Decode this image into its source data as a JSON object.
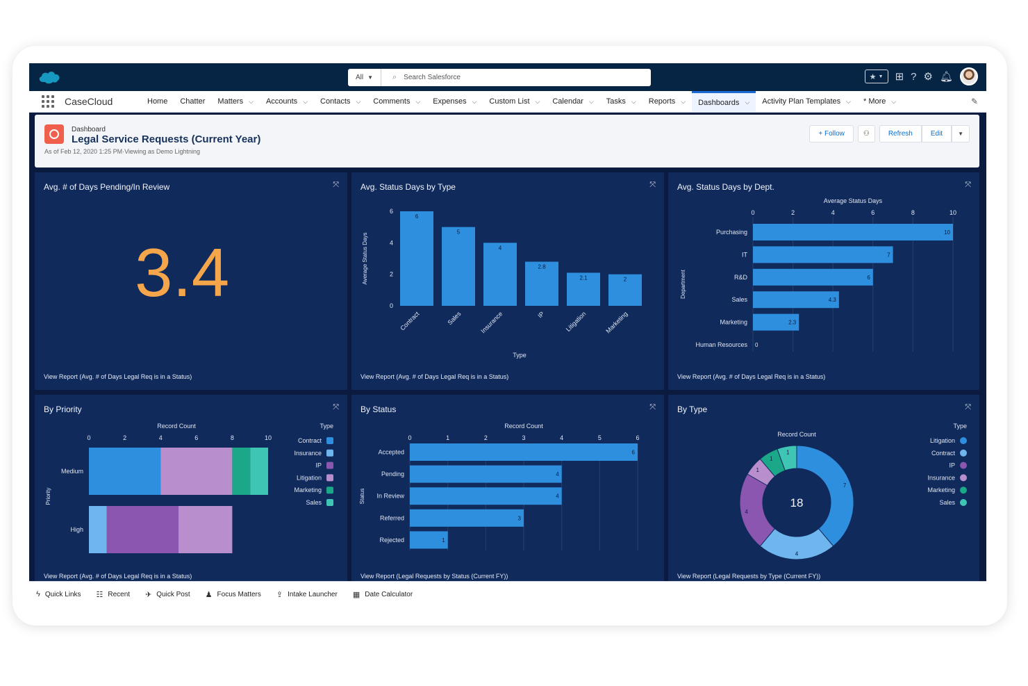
{
  "top": {
    "search_scope": "All",
    "search_placeholder": "Search Salesforce"
  },
  "nav": {
    "app_name": "CaseCloud",
    "items": [
      {
        "label": "Home",
        "dropdown": false
      },
      {
        "label": "Chatter",
        "dropdown": false
      },
      {
        "label": "Matters",
        "dropdown": true
      },
      {
        "label": "Accounts",
        "dropdown": true
      },
      {
        "label": "Contacts",
        "dropdown": true
      },
      {
        "label": "Comments",
        "dropdown": true
      },
      {
        "label": "Expenses",
        "dropdown": true
      },
      {
        "label": "Custom List",
        "dropdown": true
      },
      {
        "label": "Calendar",
        "dropdown": true
      },
      {
        "label": "Tasks",
        "dropdown": true
      },
      {
        "label": "Reports",
        "dropdown": true
      },
      {
        "label": "Dashboards",
        "dropdown": true,
        "active": true
      },
      {
        "label": "Activity Plan Templates",
        "dropdown": true
      },
      {
        "label": "* More",
        "dropdown": true
      }
    ]
  },
  "header": {
    "type_label": "Dashboard",
    "title": "Legal Service Requests (Current Year)",
    "subtitle": "As of Feb 12, 2020 1:25 PM·Viewing as Demo Lightning",
    "follow_label": "+ Follow",
    "refresh_label": "Refresh",
    "edit_label": "Edit"
  },
  "panels": {
    "days_pending": {
      "title": "Avg. # of Days Pending/In Review",
      "value": "3.4",
      "footer": "View Report (Avg. # of Days Legal Req is in a Status)"
    },
    "status_by_type": {
      "title": "Avg. Status Days by Type",
      "footer": "View Report (Avg. # of Days Legal Req is in a Status)"
    },
    "status_by_dept": {
      "title": "Avg. Status Days by Dept.",
      "footer": "View Report (Avg. # of Days Legal Req is in a Status)"
    },
    "by_priority": {
      "title": "By Priority",
      "footer": "View Report (Avg. # of Days Legal Req is in a Status)"
    },
    "by_status": {
      "title": "By Status",
      "footer": "View Report (Legal Requests by Status (Current FY))"
    },
    "by_type": {
      "title": "By Type",
      "footer": "View Report (Legal Requests by Type (Current FY))"
    }
  },
  "chart_data": [
    {
      "id": "status_by_type",
      "type": "bar",
      "categories": [
        "Contract",
        "Sales",
        "Insurance",
        "IP",
        "Litigation",
        "Marketing"
      ],
      "values": [
        6,
        5,
        4,
        2.8,
        2.1,
        2
      ],
      "xlabel": "Type",
      "ylabel": "Average Status Days",
      "ylim": [
        0,
        6
      ],
      "yticks": [
        0,
        2,
        4,
        6
      ],
      "color": "#2d8fde"
    },
    {
      "id": "status_by_dept",
      "type": "bar",
      "orientation": "horizontal",
      "categories": [
        "Purchasing",
        "IT",
        "R&D",
        "Sales",
        "Marketing",
        "Human Resources"
      ],
      "values": [
        10,
        7,
        6,
        4.3,
        2.3,
        0
      ],
      "xlabel": "Average Status Days",
      "ylabel": "Department",
      "xlim": [
        0,
        10
      ],
      "xticks": [
        0,
        2,
        4,
        6,
        8,
        10
      ],
      "color": "#2d8fde"
    },
    {
      "id": "by_priority",
      "type": "bar",
      "orientation": "horizontal",
      "stacked": true,
      "categories": [
        "Medium",
        "High"
      ],
      "xlabel": "Record Count",
      "ylabel": "Priority",
      "xlim": [
        0,
        10
      ],
      "xticks": [
        0,
        2,
        4,
        6,
        8,
        10
      ],
      "legend_title": "Type",
      "series": [
        {
          "name": "Contract",
          "values": [
            4,
            0
          ],
          "color": "#2d8fde"
        },
        {
          "name": "Insurance",
          "values": [
            0,
            1
          ],
          "color": "#6fb6ee"
        },
        {
          "name": "IP",
          "values": [
            0,
            4
          ],
          "color": "#8a56b0"
        },
        {
          "name": "Litigation",
          "values": [
            4,
            3
          ],
          "color": "#b88fcc"
        },
        {
          "name": "Marketing",
          "values": [
            1,
            0
          ],
          "color": "#1aa889"
        },
        {
          "name": "Sales",
          "values": [
            1,
            0
          ],
          "color": "#3fc5b4"
        }
      ]
    },
    {
      "id": "by_status",
      "type": "bar",
      "orientation": "horizontal",
      "categories": [
        "Accepted",
        "Pending",
        "In Review",
        "Referred",
        "Rejected"
      ],
      "values": [
        6,
        4,
        4,
        3,
        1
      ],
      "xlabel": "Record Count",
      "ylabel": "Status",
      "xlim": [
        0,
        6
      ],
      "xticks": [
        0,
        1,
        2,
        3,
        4,
        5,
        6
      ],
      "color": "#2d8fde"
    },
    {
      "id": "by_type",
      "type": "pie",
      "donut": true,
      "title": "Record Count",
      "total": "18",
      "legend_title": "Type",
      "slices": [
        {
          "name": "Litigation",
          "value": 7,
          "color": "#2d8fde"
        },
        {
          "name": "Contract",
          "value": 4,
          "color": "#6fb6ee"
        },
        {
          "name": "IP",
          "value": 4,
          "color": "#8a56b0"
        },
        {
          "name": "Insurance",
          "value": 1,
          "color": "#b88fcc"
        },
        {
          "name": "Marketing",
          "value": 1,
          "color": "#1aa889"
        },
        {
          "name": "Sales",
          "value": 1,
          "color": "#3fc5b4"
        }
      ],
      "legend": [
        "Litigation",
        "Contract",
        "IP",
        "Insurance",
        "Marketing",
        "Sales"
      ],
      "legend_colors": [
        "#2d8fde",
        "#6fb6ee",
        "#8a56b0",
        "#b88fcc",
        "#1aa889",
        "#3fc5b4"
      ]
    }
  ],
  "utility": {
    "items": [
      {
        "label": "Quick Links",
        "icon": "lightning-icon",
        "glyph": "ϟ"
      },
      {
        "label": "Recent",
        "icon": "list-icon",
        "glyph": "☷"
      },
      {
        "label": "Quick Post",
        "icon": "megaphone-icon",
        "glyph": "✈"
      },
      {
        "label": "Focus Matters",
        "icon": "people-icon",
        "glyph": "♟"
      },
      {
        "label": "Intake Launcher",
        "icon": "upload-icon",
        "glyph": "⇪"
      },
      {
        "label": "Date Calculator",
        "icon": "calendar-icon",
        "glyph": "▦"
      }
    ]
  }
}
